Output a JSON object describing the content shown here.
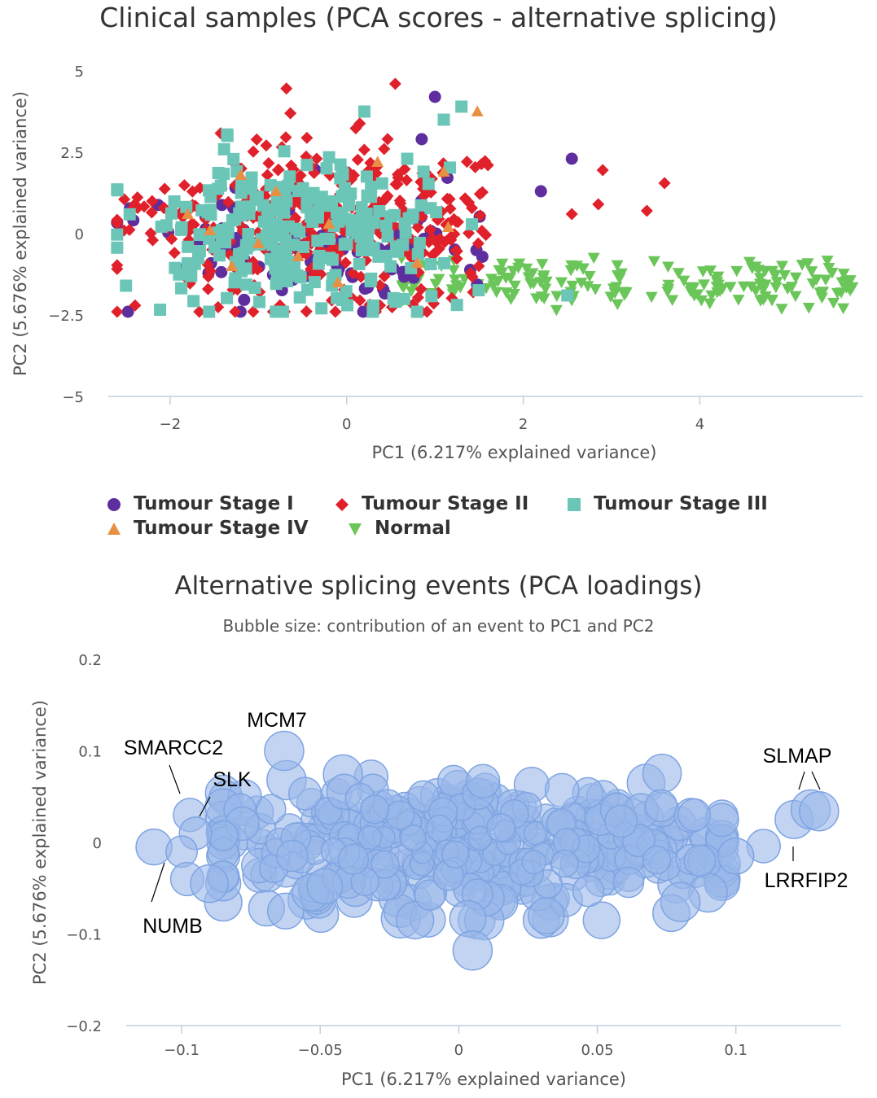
{
  "chart_data": [
    {
      "type": "scatter",
      "title": "Clinical samples (PCA scores - alternative splicing)",
      "xlabel": "PC1 (6.217% explained variance)",
      "ylabel": "PC2 (5.676% explained variance)",
      "xlim": [
        -2.7,
        5.85
      ],
      "ylim": [
        -5,
        5
      ],
      "xticks": [
        -2,
        0,
        2,
        4
      ],
      "yticks": [
        5,
        2.5,
        0,
        -2.5,
        -5
      ],
      "xtick_labels": [
        "−2",
        "0",
        "2",
        "4"
      ],
      "ytick_labels": [
        "5",
        "2.5",
        "0",
        "−2.5",
        "−5"
      ],
      "grid": false,
      "legend": "bottom",
      "series": [
        {
          "name": "Tumour Stage I",
          "marker": "circle",
          "color": "#5e2e9e",
          "x_center": -0.3,
          "y_center": -0.3,
          "x_spread": 1.2,
          "y_spread": 1.0,
          "n": 120,
          "extra": [
            [
              2.55,
              2.3
            ],
            [
              1.0,
              4.2
            ],
            [
              2.2,
              1.3
            ],
            [
              0.85,
              2.9
            ]
          ]
        },
        {
          "name": "Tumour Stage II",
          "marker": "diamond",
          "color": "#e0202a",
          "x_center": -0.2,
          "y_center": 0.2,
          "x_spread": 1.3,
          "y_spread": 1.3,
          "n": 360,
          "extra": [
            [
              0.55,
              4.6
            ],
            [
              3.6,
              1.55
            ],
            [
              3.4,
              0.7
            ],
            [
              2.9,
              1.95
            ],
            [
              2.85,
              0.9
            ],
            [
              -2.45,
              0.7
            ],
            [
              0.85,
              -2.4
            ],
            [
              2.55,
              0.6
            ]
          ]
        },
        {
          "name": "Tumour Stage III",
          "marker": "square",
          "color": "#6cc6b8",
          "x_center": -0.5,
          "y_center": 0.0,
          "x_spread": 1.1,
          "y_spread": 1.1,
          "n": 260,
          "extra": [
            [
              -2.5,
              -1.6
            ],
            [
              2.5,
              -1.9
            ],
            [
              1.3,
              3.9
            ],
            [
              0.2,
              3.75
            ],
            [
              -1.35,
              3.0
            ],
            [
              1.1,
              3.5
            ]
          ]
        },
        {
          "name": "Tumour Stage IV",
          "marker": "triangle-up",
          "color": "#e88f44",
          "points": [
            [
              1.48,
              3.75
            ],
            [
              1.1,
              1.9
            ],
            [
              -1.8,
              0.6
            ],
            [
              -1.2,
              1.8
            ],
            [
              0.35,
              2.2
            ],
            [
              -0.55,
              -0.7
            ],
            [
              -1.3,
              -1.0
            ],
            [
              -0.8,
              1.3
            ],
            [
              1.15,
              0.2
            ],
            [
              -0.1,
              -1.5
            ],
            [
              -1.55,
              0.1
            ],
            [
              -0.2,
              0.3
            ],
            [
              0.8,
              -0.9
            ],
            [
              -1.0,
              -0.3
            ]
          ]
        },
        {
          "name": "Normal",
          "marker": "triangle-down",
          "color": "#6bc65a",
          "x_center": 3.4,
          "y_center": -1.5,
          "x_range": [
            0.6,
            5.75
          ],
          "y_spread": 0.35,
          "n": 170
        }
      ]
    },
    {
      "type": "scatter",
      "title": "Alternative splicing events (PCA loadings)",
      "subtitle": "Bubble size: contribution of an event to PC1 and PC2",
      "xlabel": "PC1 (6.217% explained variance)",
      "ylabel": "PC2 (5.676% explained variance)",
      "xlim": [
        -0.12,
        0.138
      ],
      "ylim": [
        -0.2,
        0.2
      ],
      "xticks": [
        -0.1,
        -0.05,
        0,
        0.05,
        0.1
      ],
      "yticks": [
        0.2,
        0.1,
        0,
        -0.1,
        -0.2
      ],
      "xtick_labels": [
        "−0.1",
        "−0.05",
        "0",
        "0.05",
        "0.1"
      ],
      "ytick_labels": [
        "0.2",
        "0.1",
        "0",
        "−0.1",
        "−0.2"
      ],
      "grid": false,
      "bubble_color": "#9ab8ea",
      "bubble_stroke": "#7ea4e2",
      "bubbles": {
        "x_center": 0.0,
        "y_center": -0.005,
        "x_spread": 0.045,
        "y_spread": 0.035,
        "n": 420
      },
      "outliers": [
        [
          -0.063,
          0.1
        ],
        [
          -0.097,
          0.03
        ],
        [
          -0.095,
          0.01
        ],
        [
          -0.11,
          -0.005
        ],
        [
          -0.1,
          -0.01
        ],
        [
          -0.098,
          -0.04
        ],
        [
          -0.09,
          -0.045
        ],
        [
          0.005,
          -0.118
        ],
        [
          0.121,
          0.025
        ],
        [
          0.127,
          0.036
        ],
        [
          0.13,
          0.034
        ],
        [
          0.11,
          -0.004
        ],
        [
          0.1,
          -0.015
        ],
        [
          0.09,
          -0.055
        ],
        [
          0.08,
          -0.065
        ],
        [
          0.087,
          -0.02
        ],
        [
          0.073,
          0.04
        ],
        [
          0.085,
          0.03
        ]
      ],
      "annotations": [
        {
          "text": "MCM7",
          "x": -0.063,
          "y": 0.1
        },
        {
          "text": "SMARCC2",
          "x": -0.097,
          "y": 0.03
        },
        {
          "text": "SLK",
          "x": -0.095,
          "y": 0.01
        },
        {
          "text": "NUMB",
          "x": -0.1,
          "y": -0.01
        },
        {
          "text": "SLMAP",
          "x": 0.127,
          "y": 0.036
        },
        {
          "text": "LRRFIP2",
          "x": 0.121,
          "y": 0.025
        }
      ]
    }
  ]
}
